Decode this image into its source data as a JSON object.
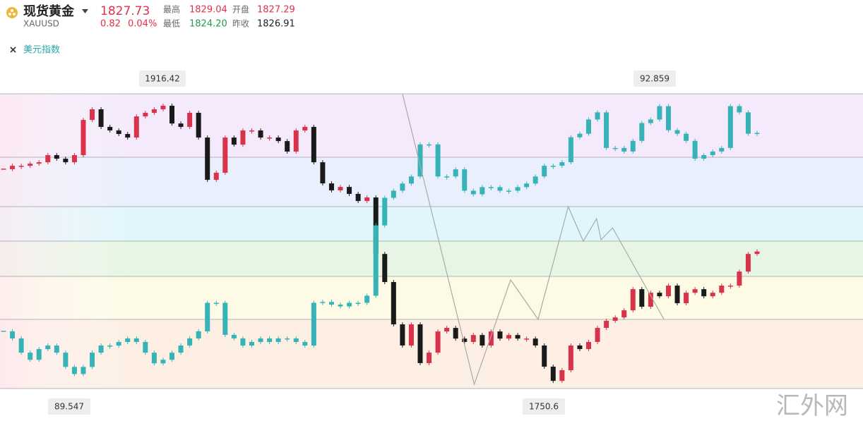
{
  "header": {
    "title": "现货黄金",
    "symbol": "XAUUSD",
    "price": "1827.73",
    "change": "0.82",
    "change_pct": "0.04%",
    "high_label": "最高",
    "high": "1829.04",
    "open_label": "开盘",
    "open": "1827.29",
    "low_label": "最低",
    "low": "1824.20",
    "prev_close_label": "昨收",
    "prev_close": "1826.91",
    "overlay": "美元指数"
  },
  "watermark": "汇外网",
  "chart_data": {
    "type": "candlestick",
    "ylim": [
      1750.6,
      1916.42
    ],
    "y2lim": [
      89.547,
      92.859
    ],
    "annotations": [
      "1916.42",
      "92.859",
      "89.547",
      "1750.6"
    ],
    "series": [
      {
        "name": "现货黄金",
        "color": "#d9324b",
        "down_color": "#1a1a1a",
        "values": [
          1874.0,
          1875.9,
          1875.9,
          1877.1,
          1877.9,
          1881.9,
          1879.9,
          1877.9,
          1881.9,
          1901.7,
          1907.7,
          1897.8,
          1895.8,
          1893.8,
          1891.8,
          1903.7,
          1905.7,
          1907.7,
          1909.7,
          1899.7,
          1897.8,
          1905.7,
          1891.8,
          1868.0,
          1872.0,
          1891.8,
          1887.8,
          1895.8,
          1895.8,
          1891.8,
          1891.8,
          1889.8,
          1883.9,
          1895.8,
          1897.8,
          1877.9,
          1866.0,
          1862.1,
          1864.0,
          1860.1,
          1856.1,
          1858.1,
          1826.3,
          1810.5,
          1786.7,
          1774.8,
          1786.7,
          1764.9,
          1770.8,
          1782.7,
          1784.7,
          1778.7,
          1776.8,
          1780.7,
          1774.8,
          1782.7,
          1778.7,
          1780.7,
          1778.7,
          1778.7,
          1774.8,
          1762.9,
          1754.9,
          1760.9,
          1774.8,
          1772.8,
          1776.8,
          1784.7,
          1788.7,
          1790.6,
          1794.6,
          1806.5,
          1796.6,
          1804.5,
          1802.5,
          1808.5,
          1798.6,
          1804.5,
          1806.5,
          1802.5,
          1804.5,
          1808.5,
          1808.5,
          1816.4,
          1826.3,
          1827.7
        ]
      },
      {
        "name": "美元指数",
        "color": "#36b3b6",
        "down_color": "#36b3b6",
        "axis": "y2",
        "values": [
          90.19,
          90.11,
          89.95,
          89.87,
          89.99,
          90.03,
          89.95,
          89.79,
          89.71,
          89.79,
          89.95,
          90.03,
          90.03,
          90.07,
          90.11,
          90.07,
          89.95,
          89.83,
          89.87,
          89.95,
          90.03,
          90.11,
          90.19,
          90.51,
          90.51,
          90.15,
          90.11,
          90.03,
          90.07,
          90.11,
          90.07,
          90.11,
          90.11,
          90.07,
          90.03,
          90.51,
          90.52,
          90.49,
          90.47,
          90.51,
          90.51,
          90.59,
          91.38,
          91.69,
          91.77,
          91.85,
          91.93,
          92.29,
          92.29,
          91.93,
          91.93,
          92.01,
          91.77,
          91.73,
          91.81,
          91.81,
          91.77,
          91.77,
          91.81,
          91.85,
          91.93,
          92.05,
          92.05,
          92.09,
          92.37,
          92.41,
          92.57,
          92.65,
          92.25,
          92.25,
          92.21,
          92.33,
          92.53,
          92.57,
          92.72,
          92.45,
          92.41,
          92.33,
          92.13,
          92.17,
          92.21,
          92.25,
          92.72,
          92.65,
          92.41,
          92.42
        ]
      }
    ],
    "line": {
      "color": "#aaaaaa",
      "x": [
        45.0,
        53.1,
        57.2,
        60.3,
        63.7,
        65.4,
        66.9,
        67.4,
        68.7,
        74.5
      ],
      "values": [
        1916.4,
        1753.0,
        1811.7,
        1789.5,
        1852.9,
        1833.5,
        1846.2,
        1834.3,
        1841.0,
        1789.5
      ]
    }
  }
}
